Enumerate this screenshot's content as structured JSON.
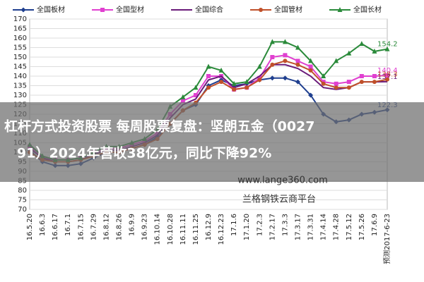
{
  "chart_data": {
    "type": "line",
    "categories": [
      "16.5.20",
      "16.6.3",
      "16.6.17",
      "16.7.1",
      "16.7.15",
      "16.7.29",
      "16.8.12",
      "16.8.26",
      "16.9.9",
      "16.9.23",
      "16.10.14",
      "16.10.28",
      "16.11.11",
      "16.11.25",
      "16.12.9",
      "16.12.23",
      "17.1.6",
      "17.1.20",
      "17.2.3",
      "17.2.17",
      "17.3.3",
      "17.3.17",
      "17.3.31",
      "17.4.14",
      "17.4.28",
      "17.5.12",
      "17.5.26",
      "17.6.9",
      "预测2017-6-23"
    ],
    "series": [
      {
        "name": "全国板材",
        "color": "#1f3f8f",
        "marker": "diamond",
        "values": [
          101,
          95,
          93,
          93,
          94,
          97,
          100,
          100,
          102,
          104,
          108,
          115,
          122,
          125,
          135,
          138,
          135,
          136,
          138,
          139,
          139,
          137,
          130,
          120,
          116,
          117,
          120,
          121,
          122.3
        ]
      },
      {
        "name": "全国型材",
        "color": "#e040d0",
        "marker": "square",
        "values": [
          103,
          97,
          96,
          96,
          97,
          100,
          102,
          102,
          104,
          106,
          110,
          120,
          127,
          130,
          140,
          140,
          133,
          134,
          139,
          150,
          151,
          148,
          145,
          137,
          136,
          137,
          140,
          140,
          140.4
        ]
      },
      {
        "name": "全国综合",
        "color": "#6a1b7a",
        "marker": "none",
        "values": [
          102,
          97,
          95,
          95,
          96,
          99,
          101,
          101,
          103,
          105,
          109,
          118,
          125,
          128,
          138,
          140,
          134,
          136,
          140,
          146,
          146,
          144,
          140,
          134,
          133,
          134,
          137,
          137,
          137.1
        ]
      },
      {
        "name": "全国管材",
        "color": "#c0502a",
        "marker": "circle",
        "values": [
          100,
          96,
          95,
          95,
          96,
          98,
          100,
          100,
          102,
          104,
          107,
          115,
          122,
          126,
          134,
          137,
          133,
          134,
          138,
          146,
          148,
          146,
          143,
          136,
          134,
          134,
          137,
          137,
          138.3
        ]
      },
      {
        "name": "全国长材",
        "color": "#2a8a3a",
        "marker": "triangle",
        "values": [
          104,
          98,
          96,
          96,
          97,
          100,
          103,
          103,
          105,
          107,
          112,
          124,
          129,
          134,
          145,
          143,
          136,
          137,
          145,
          158,
          158,
          155,
          148,
          140,
          148,
          152,
          157,
          153,
          154.2
        ]
      }
    ],
    "ylim": [
      70,
      170
    ],
    "yticks": [
      70,
      75,
      80,
      85,
      90,
      95,
      100,
      105,
      110,
      115,
      120,
      125,
      130,
      135,
      140,
      145,
      150,
      155,
      160,
      165,
      170
    ],
    "grid": true
  },
  "overlay": {
    "headline": [
      "杠杆方式投资股票 每周股票复盘：坚朗五金（0027",
      "91）2024年营收38亿元，同比下降92%"
    ],
    "watermarks": [
      "www.lange360.com",
      "兰格钢铁云商平台"
    ]
  }
}
